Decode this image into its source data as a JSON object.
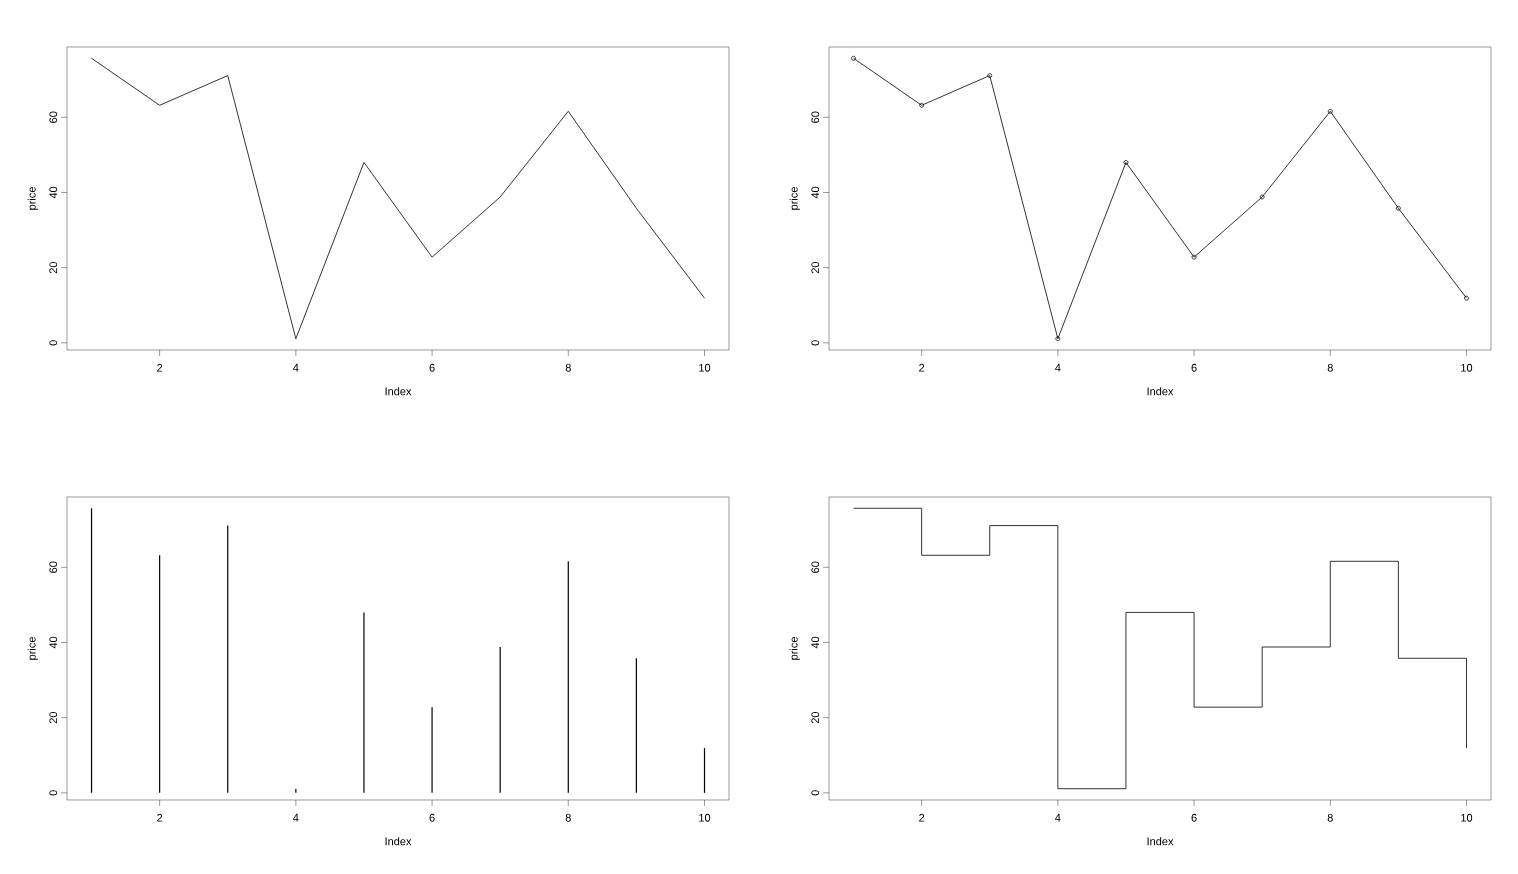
{
  "chart_data": [
    {
      "type": "line",
      "x": [
        1,
        2,
        3,
        4,
        5,
        6,
        7,
        8,
        9,
        10
      ],
      "values": [
        75.7,
        63.2,
        71.1,
        1.1,
        48.0,
        22.8,
        38.8,
        61.6,
        35.8,
        11.9
      ],
      "color": "#000000",
      "xlabel": "Index",
      "ylabel": "price",
      "xlim": [
        0.64,
        10.36
      ],
      "ylim": [
        -1.9,
        78.7
      ],
      "xticks": [
        2,
        4,
        6,
        8,
        10
      ],
      "yticks": [
        0,
        20,
        40,
        60
      ],
      "line_style": "solid",
      "grid": false
    },
    {
      "type": "line",
      "x": [
        1,
        2,
        3,
        4,
        5,
        6,
        7,
        8,
        9,
        10
      ],
      "values": [
        75.7,
        63.2,
        71.1,
        1.1,
        48.0,
        22.8,
        38.8,
        61.6,
        35.8,
        11.9
      ],
      "color": "#000000",
      "marker": "circle",
      "xlabel": "Index",
      "ylabel": "price",
      "xlim": [
        0.64,
        10.36
      ],
      "ylim": [
        -1.9,
        78.7
      ],
      "xticks": [
        2,
        4,
        6,
        8,
        10
      ],
      "yticks": [
        0,
        20,
        40,
        60
      ],
      "line_style": "solid",
      "grid": false
    },
    {
      "type": "bar",
      "x": [
        1,
        2,
        3,
        4,
        5,
        6,
        7,
        8,
        9,
        10
      ],
      "values": [
        75.7,
        63.2,
        71.1,
        1.1,
        48.0,
        22.8,
        38.8,
        61.6,
        35.8,
        11.9
      ],
      "color": "#000000",
      "xlabel": "Index",
      "ylabel": "price",
      "xlim": [
        0.64,
        10.36
      ],
      "ylim": [
        -1.9,
        78.7
      ],
      "xticks": [
        2,
        4,
        6,
        8,
        10
      ],
      "yticks": [
        0,
        20,
        40,
        60
      ],
      "grid": false
    },
    {
      "type": "step",
      "x": [
        1,
        2,
        3,
        4,
        5,
        6,
        7,
        8,
        9,
        10
      ],
      "values": [
        75.7,
        63.2,
        71.1,
        1.1,
        48.0,
        22.8,
        38.8,
        61.6,
        35.8,
        11.9
      ],
      "color": "#000000",
      "xlabel": "Index",
      "ylabel": "price",
      "xlim": [
        0.64,
        10.36
      ],
      "ylim": [
        -1.9,
        78.7
      ],
      "xticks": [
        2,
        4,
        6,
        8,
        10
      ],
      "yticks": [
        0,
        20,
        40,
        60
      ],
      "line_style": "solid",
      "grid": false
    }
  ]
}
